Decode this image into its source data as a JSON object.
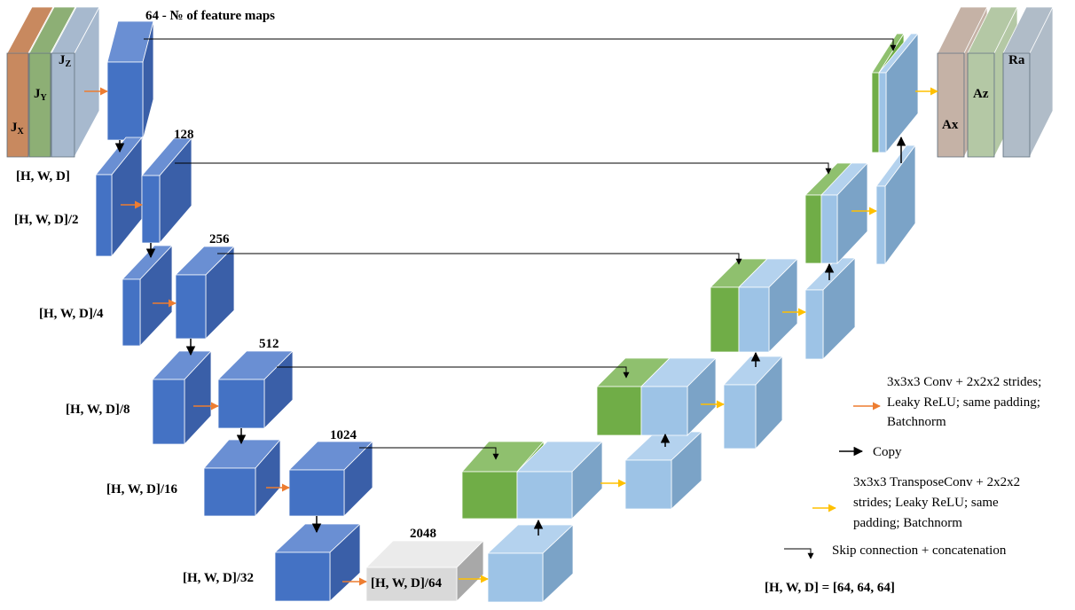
{
  "feature_maps_note": "64 - № of feature maps",
  "channel_labels": {
    "c128": "128",
    "c256": "256",
    "c512": "512",
    "c1024": "1024",
    "c2048": "2048"
  },
  "resolution_labels": {
    "r1": "[H, W, D]",
    "r2": "[H, W, D]/2",
    "r4": "[H, W, D]/4",
    "r8": "[H, W, D]/8",
    "r16": "[H, W, D]/16",
    "r32": "[H, W, D]/32",
    "r64": "[H, W, D]/64"
  },
  "inputs": {
    "jx": {
      "main": "J",
      "sub": "X"
    },
    "jy": {
      "main": "J",
      "sub": "Y"
    },
    "jz": {
      "main": "J",
      "sub": "Z"
    }
  },
  "outputs": {
    "ax": "Ax",
    "az": "Az",
    "ra": "Ra"
  },
  "legend": {
    "conv": [
      "3x3x3 Conv + 2x2x2 strides;",
      "Leaky ReLU; same padding;",
      "Batchnorm"
    ],
    "copy": "Copy",
    "transpose": [
      "3x3x3 TransposeConv + 2x2x2",
      "strides; Leaky ReLU; same",
      "padding; Batchnorm"
    ],
    "skip": "Skip connection + concatenation",
    "hwd_def": "[H, W, D] = [64, 64, 64]"
  },
  "colors": {
    "encoder_front": "#4472C4",
    "encoder_top": "#6A8FD3",
    "encoder_side": "#3A5FA8",
    "decoder_front": "#9DC3E6",
    "decoder_top": "#B4D2EE",
    "decoder_side": "#7BA3C7",
    "skip_front": "#70AD47",
    "skip_top": "#8FC06E",
    "bottleneck_front": "#D9D9D9",
    "bottleneck_top": "#EBEBEB",
    "bottleneck_side": "#A8A8A8",
    "jx": "#C8895F",
    "jy": "#8DAF75",
    "jz": "#A7B9CE",
    "ax": "#C5B2A6",
    "az": "#B4C8A5",
    "ra": "#B0BCC8",
    "conv_arrow": "#ED7D31",
    "transpose_arrow": "#FFC000",
    "copy_arrow": "#000000"
  }
}
